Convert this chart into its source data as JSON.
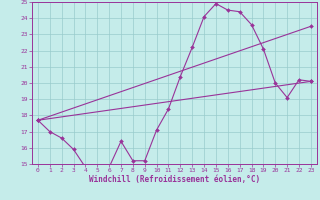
{
  "xlabel": "Windchill (Refroidissement éolien,°C)",
  "xlim": [
    -0.5,
    23.5
  ],
  "ylim": [
    15,
    25
  ],
  "yticks": [
    15,
    16,
    17,
    18,
    19,
    20,
    21,
    22,
    23,
    24,
    25
  ],
  "xticks": [
    0,
    1,
    2,
    3,
    4,
    5,
    6,
    7,
    8,
    9,
    10,
    11,
    12,
    13,
    14,
    15,
    16,
    17,
    18,
    19,
    20,
    21,
    22,
    23
  ],
  "bg_color": "#c5ecea",
  "line_color": "#993399",
  "grid_color": "#99cccc",
  "line1_x": [
    0,
    1,
    2,
    3,
    4,
    5,
    6,
    7,
    8,
    9,
    10,
    11,
    12,
    13,
    14,
    15,
    16,
    17,
    18,
    19,
    20,
    21,
    22,
    23
  ],
  "line1_y": [
    17.7,
    17.0,
    16.6,
    15.9,
    14.8,
    14.8,
    14.8,
    16.4,
    15.2,
    15.2,
    17.1,
    18.4,
    20.4,
    22.2,
    24.1,
    24.9,
    24.5,
    24.4,
    23.6,
    22.1,
    20.0,
    19.1,
    20.2,
    20.1
  ],
  "line2_x": [
    0,
    23
  ],
  "line2_y": [
    17.7,
    20.1
  ],
  "line3_x": [
    0,
    23
  ],
  "line3_y": [
    17.7,
    23.5
  ]
}
